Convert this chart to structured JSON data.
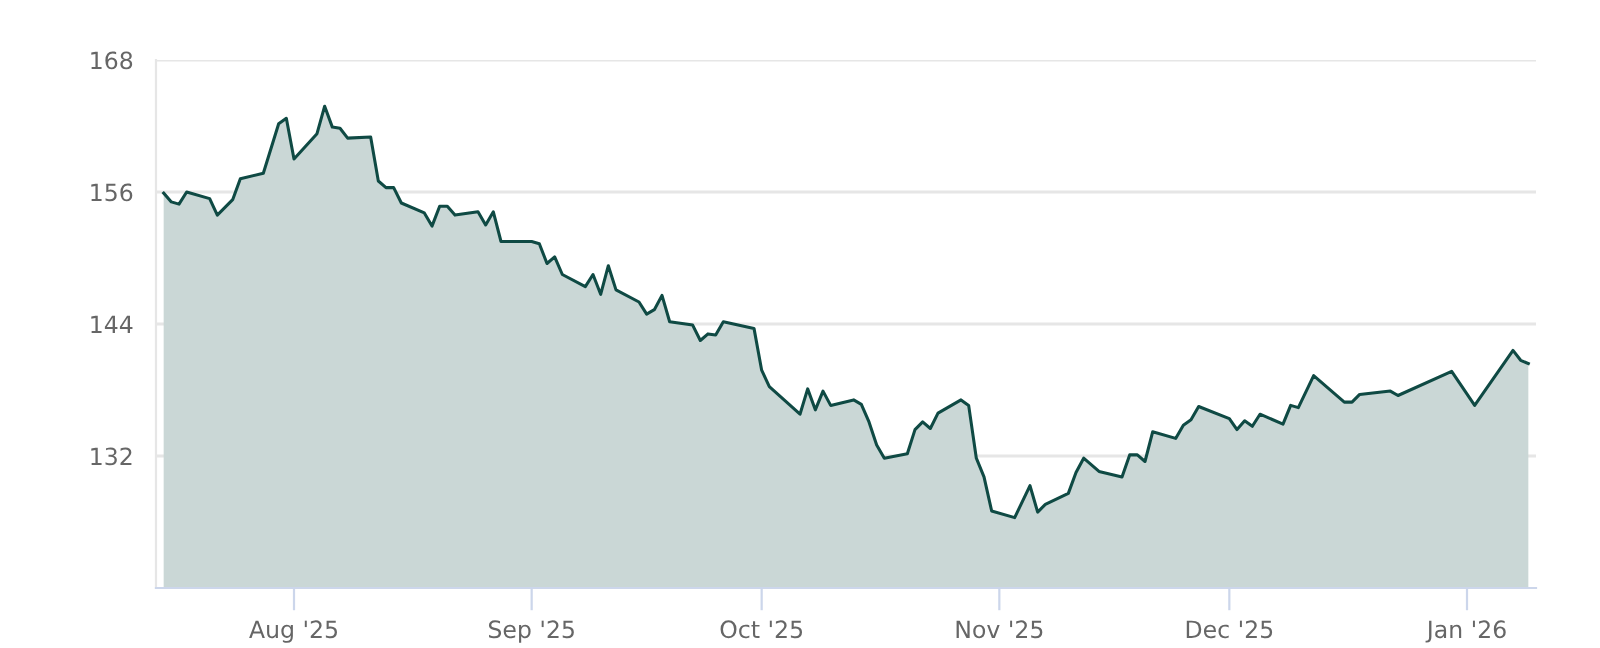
{
  "chart_data": {
    "type": "area",
    "series": [
      {
        "color": "#0f4a44",
        "x": [
          "2025-07-15",
          "2025-07-16",
          "2025-07-17",
          "2025-07-18",
          "2025-07-21",
          "2025-07-22",
          "2025-07-24",
          "2025-07-25",
          "2025-07-28",
          "2025-07-30",
          "2025-07-31",
          "2025-08-01",
          "2025-08-04",
          "2025-08-05",
          "2025-08-06",
          "2025-08-07",
          "2025-08-08",
          "2025-08-11",
          "2025-08-12",
          "2025-08-13",
          "2025-08-14",
          "2025-08-15",
          "2025-08-18",
          "2025-08-19",
          "2025-08-20",
          "2025-08-21",
          "2025-08-22",
          "2025-08-25",
          "2025-08-26",
          "2025-08-27",
          "2025-08-28",
          "2025-09-01",
          "2025-09-02",
          "2025-09-03",
          "2025-09-04",
          "2025-09-05",
          "2025-09-08",
          "2025-09-09",
          "2025-09-10",
          "2025-09-11",
          "2025-09-12",
          "2025-09-15",
          "2025-09-16",
          "2025-09-17",
          "2025-09-18",
          "2025-09-19",
          "2025-09-22",
          "2025-09-23",
          "2025-09-24",
          "2025-09-25",
          "2025-09-26",
          "2025-09-30",
          "2025-10-01",
          "2025-10-02",
          "2025-10-06",
          "2025-10-07",
          "2025-10-08",
          "2025-10-09",
          "2025-10-10",
          "2025-10-13",
          "2025-10-14",
          "2025-10-15",
          "2025-10-16",
          "2025-10-17",
          "2025-10-20",
          "2025-10-21",
          "2025-10-22",
          "2025-10-23",
          "2025-10-24",
          "2025-10-27",
          "2025-10-28",
          "2025-10-29",
          "2025-10-30",
          "2025-10-31",
          "2025-11-03",
          "2025-11-05",
          "2025-11-06",
          "2025-11-07",
          "2025-11-10",
          "2025-11-11",
          "2025-11-12",
          "2025-11-14",
          "2025-11-17",
          "2025-11-18",
          "2025-11-19",
          "2025-11-20",
          "2025-11-21",
          "2025-11-24",
          "2025-11-25",
          "2025-11-26",
          "2025-11-27",
          "2025-12-01",
          "2025-12-02",
          "2025-12-03",
          "2025-12-04",
          "2025-12-05",
          "2025-12-08",
          "2025-12-09",
          "2025-12-10",
          "2025-12-12",
          "2025-12-16",
          "2025-12-17",
          "2025-12-18",
          "2025-12-22",
          "2025-12-23",
          "2025-12-30",
          "2026-01-02",
          "2026-01-07",
          "2026-01-08",
          "2026-01-09"
        ],
        "values": [
          155.9,
          155.1,
          154.9,
          156.0,
          155.4,
          153.9,
          155.3,
          157.2,
          157.7,
          162.2,
          162.7,
          159.0,
          161.3,
          163.8,
          161.9,
          161.8,
          160.9,
          161.0,
          157.0,
          156.4,
          156.4,
          155.0,
          154.1,
          152.9,
          154.7,
          154.7,
          153.9,
          154.2,
          153.0,
          154.2,
          151.5,
          151.5,
          151.3,
          149.5,
          150.1,
          148.5,
          147.4,
          148.5,
          146.7,
          149.3,
          147.1,
          146.0,
          144.9,
          145.3,
          146.6,
          144.2,
          143.9,
          142.5,
          143.1,
          143.0,
          144.2,
          143.6,
          139.8,
          138.3,
          135.8,
          138.1,
          136.2,
          137.9,
          136.6,
          137.1,
          136.7,
          135.1,
          133.0,
          131.8,
          132.2,
          134.4,
          135.1,
          134.5,
          135.9,
          137.1,
          136.6,
          131.8,
          130.1,
          127.0,
          126.4,
          129.3,
          126.9,
          127.6,
          128.6,
          130.5,
          131.8,
          130.6,
          130.1,
          132.1,
          132.1,
          131.5,
          134.2,
          133.6,
          134.8,
          135.3,
          136.5,
          135.4,
          134.4,
          135.2,
          134.7,
          135.8,
          134.9,
          136.6,
          136.4,
          139.3,
          136.9,
          136.9,
          137.6,
          137.9,
          137.5,
          139.7,
          136.6,
          141.6,
          140.7,
          140.4
        ]
      }
    ],
    "xlim": [
      "2025-07-14",
      "2026-01-10"
    ],
    "xticks": [
      {
        "value": "2025-08-01",
        "label": "Aug '25"
      },
      {
        "value": "2025-09-01",
        "label": "Sep '25"
      },
      {
        "value": "2025-10-01",
        "label": "Oct '25"
      },
      {
        "value": "2025-11-01",
        "label": "Nov '25"
      },
      {
        "value": "2025-12-01",
        "label": "Dec '25"
      },
      {
        "value": "2026-01-01",
        "label": "Jan '26"
      }
    ],
    "ylim": [
      120,
      168
    ],
    "yticks": [
      132,
      144,
      156,
      168
    ],
    "grid": "y",
    "legend": false,
    "marker": "none",
    "line_style": "solid"
  }
}
